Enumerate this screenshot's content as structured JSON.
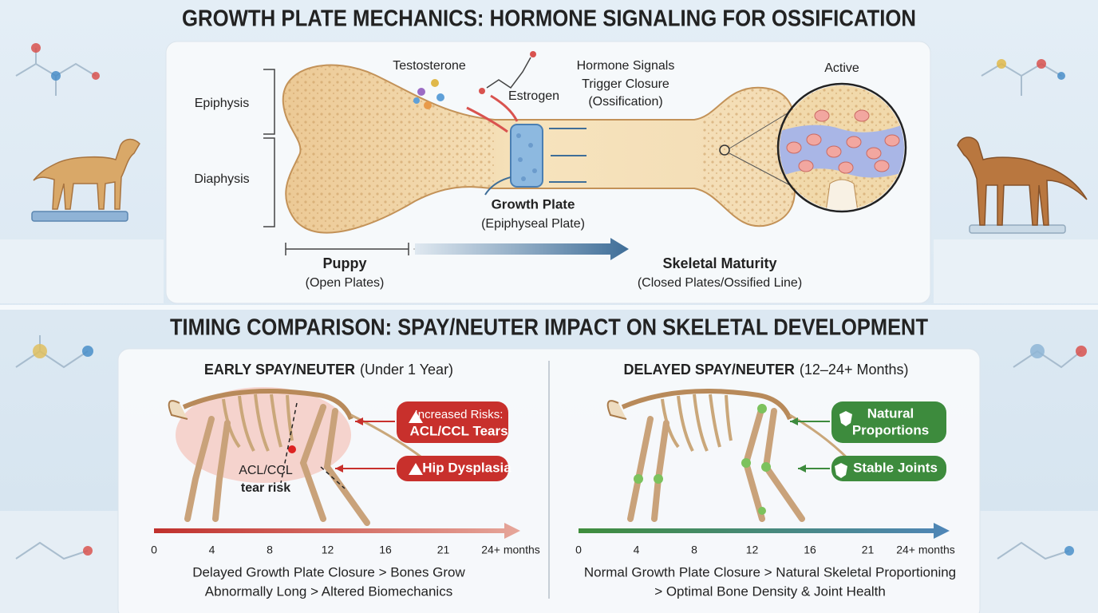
{
  "header": {
    "title": "GROWTH PLATE MECHANICS: HORMONE SIGNALING FOR OSSIFICATION"
  },
  "bone_panel": {
    "epiphysis": "Epiphysis",
    "diaphysis": "Diaphysis",
    "testosterone": "Testosterone",
    "estrogen": "Estrogen",
    "hormone_signals": [
      "Hormone Signals",
      "Trigger Closure",
      "(Ossification)"
    ],
    "growth_plate": "Growth Plate",
    "growth_plate_sub": "(Epiphyseal Plate)",
    "active": "Active",
    "timeline": {
      "start": "Puppy",
      "start_sub": "(Open Plates)",
      "end": "Skeletal Maturity",
      "end_sub": "(Closed Plates/Ossified Line)"
    }
  },
  "comparison": {
    "title": "TIMING COMPARISON: SPAY/NEUTER IMPACT ON SKELETAL DEVELOPMENT",
    "early": {
      "heading": "EARLY SPAY/NEUTER",
      "heading_sub": "(Under 1 Year)",
      "badges": [
        [
          "Increased Risks:",
          "ACL/CCL Tears"
        ],
        [
          "Hip Dysplasia"
        ]
      ],
      "annotation": [
        "ACL/CCL",
        "tear risk"
      ],
      "ticks": [
        "0",
        "4",
        "8",
        "12",
        "16",
        "21",
        "24+ months"
      ],
      "summary": [
        "Delayed Growth Plate Closure > Bones Grow",
        "Abnormally Long > Altered Biomechanics"
      ]
    },
    "delayed": {
      "heading": "DELAYED SPAY/NEUTER",
      "heading_sub": "(12–24+ Months)",
      "badges": [
        [
          "Natural",
          "Proportions"
        ],
        [
          "Stable Joints"
        ]
      ],
      "ticks": [
        "0",
        "4",
        "8",
        "12",
        "16",
        "21",
        "24+ months"
      ],
      "summary": [
        "Normal Growth Plate Closure > Natural Skeletal Proportioning",
        "> Optimal Bone Density & Joint Health"
      ]
    }
  }
}
